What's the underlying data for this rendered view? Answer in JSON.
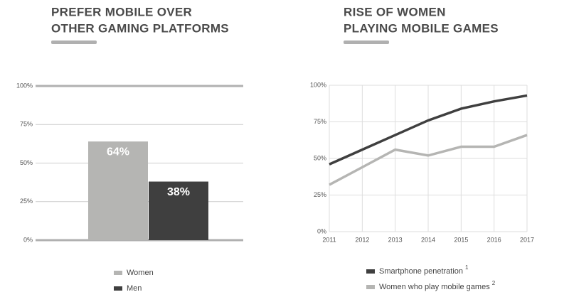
{
  "chart_data": [
    {
      "type": "bar",
      "title": [
        "PREFER MOBILE OVER",
        "OTHER GAMING PLATFORMS"
      ],
      "series": [
        {
          "name": "Women",
          "color": "#b5b5b3",
          "values": [
            64
          ],
          "value_labels": [
            "64%"
          ]
        },
        {
          "name": "Men",
          "color": "#3f3f3f",
          "values": [
            38
          ],
          "value_labels": [
            "38%"
          ]
        }
      ],
      "ylim": [
        0,
        100
      ],
      "yticks": [
        {
          "value": 0,
          "label": "0%"
        },
        {
          "value": 25,
          "label": "25%"
        },
        {
          "value": 50,
          "label": "50%"
        },
        {
          "value": 75,
          "label": "75%"
        },
        {
          "value": 100,
          "label": "100%"
        }
      ],
      "grid": true
    },
    {
      "type": "line",
      "title": [
        "RISE OF WOMEN",
        "PLAYING MOBILE GAMES"
      ],
      "x": [
        2011,
        2012,
        2013,
        2014,
        2015,
        2016,
        2017
      ],
      "xlim": [
        2011,
        2017
      ],
      "xticks": [
        2011,
        2012,
        2013,
        2014,
        2015,
        2016,
        2017
      ],
      "series": [
        {
          "name": "Smartphone penetration",
          "superscript": "1",
          "color": "#3f3f3f",
          "values": [
            46,
            56,
            66,
            76,
            84,
            89,
            93
          ]
        },
        {
          "name": "Women who play mobile games",
          "superscript": "2",
          "color": "#b5b5b3",
          "values": [
            32,
            44,
            56,
            52,
            58,
            58,
            66
          ]
        }
      ],
      "ylim": [
        0,
        100
      ],
      "yticks": [
        {
          "value": 0,
          "label": "0%"
        },
        {
          "value": 25,
          "label": "25%"
        },
        {
          "value": 50,
          "label": "50%"
        },
        {
          "value": 75,
          "label": "75%"
        },
        {
          "value": 100,
          "label": "100%"
        }
      ],
      "grid": true
    }
  ]
}
